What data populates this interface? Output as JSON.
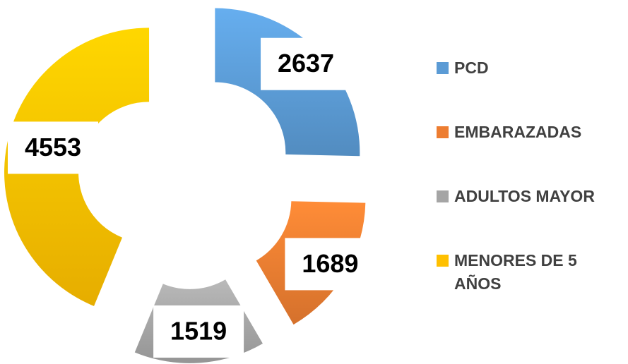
{
  "chart_data": {
    "type": "doughnut",
    "categories": [
      "PCD",
      "EMBARAZADAS",
      "ADULTOS MAYOR",
      "MENORES DE 5 AÑOS"
    ],
    "values": [
      2637,
      1689,
      1519,
      4553
    ],
    "colors": [
      "#5b9bd5",
      "#ed7d31",
      "#a5a5a5",
      "#ffc000"
    ],
    "legend": "right"
  }
}
